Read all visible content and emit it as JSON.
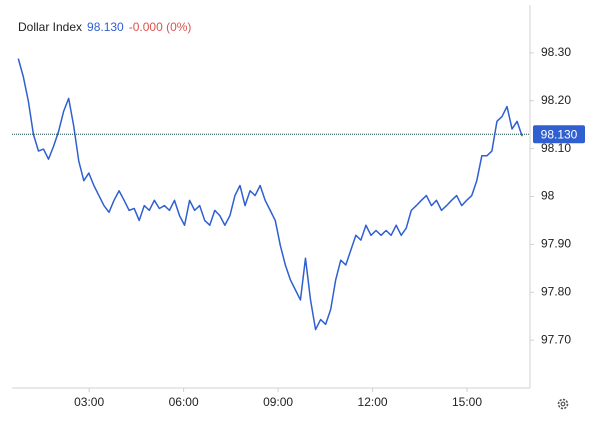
{
  "chart_data": {
    "type": "line",
    "title": "Dollar Index",
    "last_price": "98.130",
    "change": "-0.000 (0%)",
    "price_line": {
      "value": 98.13,
      "label": "98.130"
    },
    "color": "#2f5fd0",
    "grid": false,
    "x": [
      0.75,
      0.91,
      1.07,
      1.23,
      1.39,
      1.55,
      1.71,
      1.87,
      2.03,
      2.19,
      2.35,
      2.51,
      2.67,
      2.83,
      2.99,
      3.15,
      3.31,
      3.47,
      3.63,
      3.79,
      3.95,
      4.11,
      4.27,
      4.43,
      4.59,
      4.75,
      4.91,
      5.07,
      5.23,
      5.39,
      5.55,
      5.71,
      5.87,
      6.03,
      6.19,
      6.35,
      6.51,
      6.67,
      6.83,
      6.99,
      7.15,
      7.31,
      7.47,
      7.63,
      7.79,
      7.95,
      8.11,
      8.27,
      8.43,
      8.59,
      8.75,
      8.91,
      9.07,
      9.23,
      9.39,
      9.55,
      9.71,
      9.87,
      10.03,
      10.19,
      10.35,
      10.51,
      10.67,
      10.83,
      10.99,
      11.15,
      11.31,
      11.47,
      11.63,
      11.79,
      11.95,
      12.11,
      12.27,
      12.43,
      12.59,
      12.75,
      12.91,
      13.07,
      13.23,
      13.39,
      13.55,
      13.71,
      13.87,
      14.03,
      14.19,
      14.35,
      14.51,
      14.67,
      14.83,
      14.99,
      15.15,
      15.31,
      15.47,
      15.63,
      15.79,
      15.95,
      16.11,
      16.27,
      16.43,
      16.59,
      16.75
    ],
    "values": [
      98.288,
      98.25,
      98.199,
      98.13,
      98.095,
      98.099,
      98.078,
      98.105,
      98.136,
      98.178,
      98.205,
      98.147,
      98.074,
      98.033,
      98.049,
      98.023,
      98.002,
      97.981,
      97.967,
      97.992,
      98.012,
      97.992,
      97.971,
      97.975,
      97.95,
      97.981,
      97.971,
      97.992,
      97.975,
      97.981,
      97.971,
      97.992,
      97.96,
      97.94,
      97.992,
      97.971,
      97.981,
      97.95,
      97.94,
      97.971,
      97.96,
      97.94,
      97.96,
      98.002,
      98.023,
      97.981,
      98.012,
      98.002,
      98.023,
      97.992,
      97.971,
      97.95,
      97.898,
      97.857,
      97.826,
      97.805,
      97.784,
      97.871,
      97.784,
      97.722,
      97.743,
      97.733,
      97.764,
      97.826,
      97.867,
      97.857,
      97.888,
      97.919,
      97.909,
      97.94,
      97.919,
      97.929,
      97.919,
      97.929,
      97.919,
      97.94,
      97.919,
      97.934,
      97.971,
      97.981,
      97.992,
      98.002,
      97.981,
      97.992,
      97.971,
      97.981,
      97.992,
      98.002,
      97.981,
      97.992,
      98.002,
      98.033,
      98.085,
      98.085,
      98.095,
      98.157,
      98.167,
      98.188,
      98.141,
      98.157,
      98.126
    ],
    "xlim": [
      0.55,
      17
    ],
    "xticks": [
      {
        "value": 3,
        "label": "03:00"
      },
      {
        "value": 6,
        "label": "06:00"
      },
      {
        "value": 9,
        "label": "09:00"
      },
      {
        "value": 12,
        "label": "12:00"
      },
      {
        "value": 15,
        "label": "15:00"
      }
    ],
    "ylim": [
      97.6,
      98.4
    ],
    "yticks": [
      {
        "value": 97.7,
        "label": "97.70"
      },
      {
        "value": 97.8,
        "label": "97.80"
      },
      {
        "value": 97.9,
        "label": "97.90"
      },
      98,
      {
        "value": 98.1,
        "label": "98.10"
      },
      {
        "value": 98.2,
        "label": "98.20"
      },
      {
        "value": 98.3,
        "label": "98.30"
      }
    ]
  }
}
